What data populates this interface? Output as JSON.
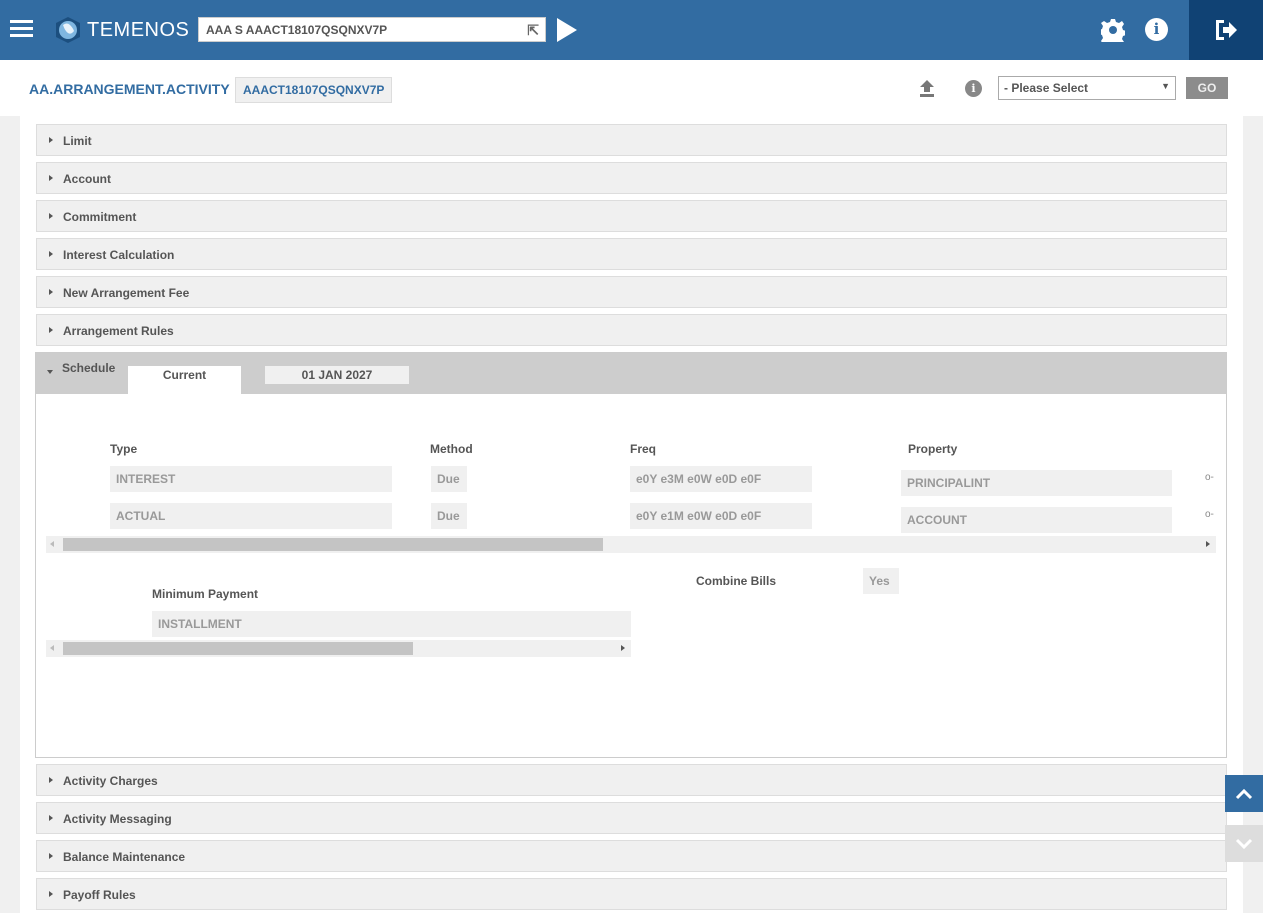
{
  "header": {
    "brand": "TEMENOS",
    "command_value": "AAA S AAACT18107QSQNXV7P",
    "brand_color": "#326ca2",
    "logout_color": "#104274"
  },
  "toolbar": {
    "app_name": "AA.ARRANGEMENT.ACTIVITY",
    "record_id": "AAACT18107QSQNXV7P",
    "select_value": "- Please Select",
    "go_label": "GO"
  },
  "sections_above": [
    "Limit",
    "Account",
    "Commitment",
    "Interest Calculation",
    "New Arrangement Fee",
    "Arrangement Rules"
  ],
  "schedule": {
    "title": "Schedule",
    "tabs": [
      "Current",
      "01 JAN 2027"
    ],
    "headers": {
      "type": "Type",
      "method": "Method",
      "freq": "Freq",
      "property": "Property"
    },
    "rows": [
      {
        "type": "INTEREST",
        "method": "Due",
        "freq": "e0Y e3M e0W e0D e0F",
        "property": "PRINCIPALINT"
      },
      {
        "type": "ACTUAL",
        "method": "Due",
        "freq": "e0Y e1M e0W e0D e0F",
        "property": "ACCOUNT"
      }
    ],
    "min_payment_label": "Minimum Payment",
    "min_payment_value": "INSTALLMENT",
    "combine_bills_label": "Combine Bills",
    "combine_bills_value": "Yes"
  },
  "sections_below": [
    "Activity Charges",
    "Activity Messaging",
    "Balance Maintenance",
    "Payoff Rules"
  ]
}
